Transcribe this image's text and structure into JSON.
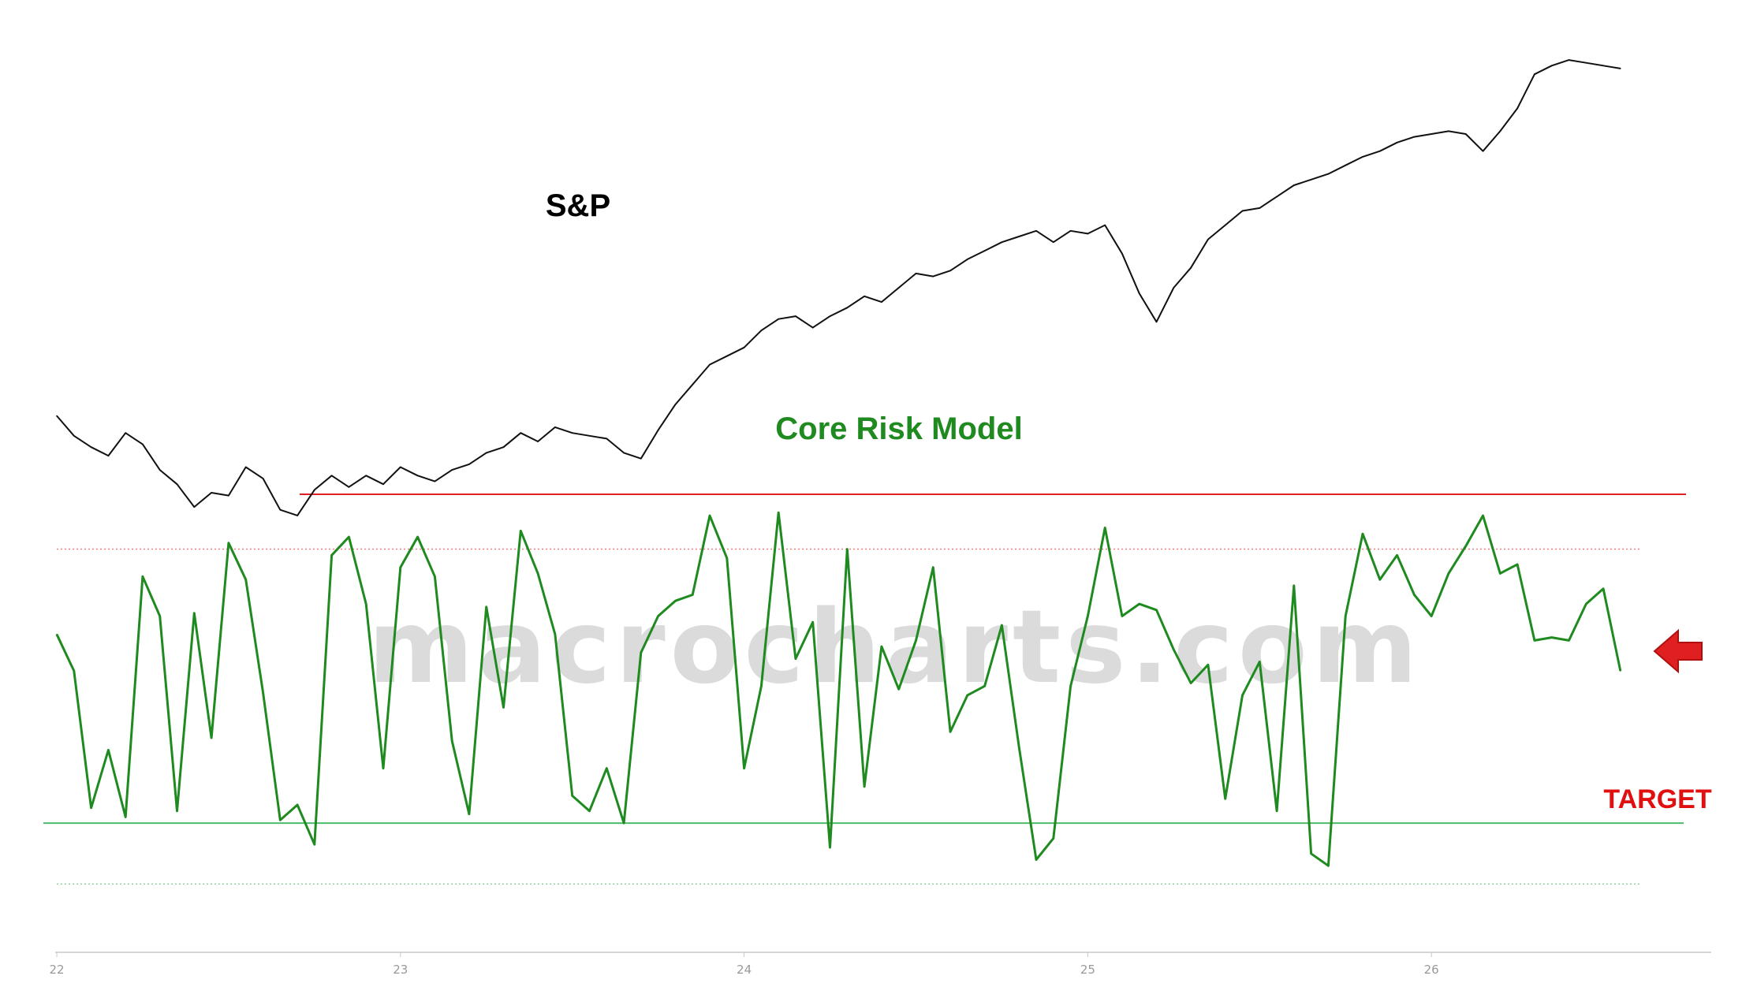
{
  "chart_data": {
    "type": "line",
    "title": "",
    "watermark": "macrocharts.com",
    "xlabel": "",
    "ylabel": "",
    "x_ticks": [
      "22",
      "23",
      "24",
      "25",
      "26"
    ],
    "xlim": [
      2022.0,
      2026.75
    ],
    "grid": false,
    "series": [
      {
        "name": "S&P",
        "color": "#111111",
        "panel": "top",
        "x": [
          2022.0,
          2022.05,
          2022.1,
          2022.15,
          2022.2,
          2022.25,
          2022.3,
          2022.35,
          2022.4,
          2022.45,
          2022.5,
          2022.55,
          2022.6,
          2022.65,
          2022.7,
          2022.75,
          2022.8,
          2022.85,
          2022.9,
          2022.95,
          2023.0,
          2023.05,
          2023.1,
          2023.15,
          2023.2,
          2023.25,
          2023.3,
          2023.35,
          2023.4,
          2023.45,
          2023.5,
          2023.55,
          2023.6,
          2023.65,
          2023.7,
          2023.75,
          2023.8,
          2023.85,
          2023.9,
          2023.95,
          2024.0,
          2024.05,
          2024.1,
          2024.15,
          2024.2,
          2024.25,
          2024.3,
          2024.35,
          2024.4,
          2024.45,
          2024.5,
          2024.55,
          2024.6,
          2024.65,
          2024.7,
          2024.75,
          2024.8,
          2024.85,
          2024.9,
          2024.95,
          2025.0,
          2025.05,
          2025.1,
          2025.15,
          2025.2,
          2025.25,
          2025.3,
          2025.35,
          2025.4,
          2025.45,
          2025.5,
          2025.55,
          2025.6,
          2025.65,
          2025.7,
          2025.75,
          2025.8,
          2025.85,
          2025.9,
          2025.95,
          2026.0,
          2026.05,
          2026.1,
          2026.15,
          2026.2,
          2026.25,
          2026.3,
          2026.35,
          2026.4,
          2026.45,
          2026.5,
          2026.55
        ],
        "y": [
          85,
          78,
          74,
          71,
          79,
          75,
          66,
          61,
          53,
          58,
          57,
          67,
          63,
          52,
          50,
          59,
          64,
          60,
          64,
          61,
          67,
          64,
          62,
          66,
          68,
          72,
          74,
          79,
          76,
          81,
          79,
          78,
          77,
          72,
          70,
          80,
          89,
          96,
          103,
          106,
          109,
          115,
          119,
          120,
          116,
          120,
          123,
          127,
          125,
          130,
          135,
          134,
          136,
          140,
          143,
          146,
          148,
          150,
          146,
          150,
          149,
          152,
          142,
          128,
          118,
          130,
          137,
          147,
          152,
          157,
          158,
          162,
          166,
          168,
          170,
          173,
          176,
          178,
          181,
          183,
          184,
          185,
          184,
          178,
          185,
          193,
          205,
          208,
          210,
          209,
          208,
          207
        ]
      },
      {
        "name": "Core Risk Model",
        "color": "#1f8a1f",
        "panel": "bottom",
        "x": [
          2022.0,
          2022.05,
          2022.1,
          2022.15,
          2022.2,
          2022.25,
          2022.3,
          2022.35,
          2022.4,
          2022.45,
          2022.5,
          2022.55,
          2022.6,
          2022.65,
          2022.7,
          2022.75,
          2022.8,
          2022.85,
          2022.9,
          2022.95,
          2023.0,
          2023.05,
          2023.1,
          2023.15,
          2023.2,
          2023.25,
          2023.3,
          2023.35,
          2023.4,
          2023.45,
          2023.5,
          2023.55,
          2023.6,
          2023.65,
          2023.7,
          2023.75,
          2023.8,
          2023.85,
          2023.9,
          2023.95,
          2024.0,
          2024.05,
          2024.1,
          2024.15,
          2024.2,
          2024.25,
          2024.3,
          2024.35,
          2024.4,
          2024.45,
          2024.5,
          2024.55,
          2024.6,
          2024.65,
          2024.7,
          2024.75,
          2024.8,
          2024.85,
          2024.9,
          2024.95,
          2025.0,
          2025.05,
          2025.1,
          2025.15,
          2025.2,
          2025.25,
          2025.3,
          2025.35,
          2025.4,
          2025.45,
          2025.5,
          2025.55,
          2025.6,
          2025.65,
          2025.7,
          2025.75,
          2025.8,
          2025.85,
          2025.9,
          2025.95,
          2026.0,
          2026.05,
          2026.1,
          2026.15,
          2026.2,
          2026.25,
          2026.3,
          2026.35,
          2026.4,
          2026.45,
          2026.5,
          2026.55
        ],
        "y": [
          62,
          50,
          5,
          24,
          2,
          81,
          68,
          4,
          69,
          28,
          92,
          80,
          43,
          1,
          6,
          -7,
          88,
          94,
          72,
          18,
          84,
          94,
          81,
          27,
          3,
          71,
          38,
          96,
          82,
          62,
          9,
          4,
          18,
          0,
          56,
          68,
          73,
          75,
          101,
          87,
          18,
          45,
          102,
          54,
          66,
          -8,
          90,
          12,
          58,
          44,
          60,
          84,
          30,
          42,
          45,
          65,
          25,
          -12,
          -5,
          45,
          68,
          97,
          68,
          72,
          70,
          57,
          46,
          52,
          8,
          42,
          53,
          4,
          78,
          -10,
          -14,
          68,
          95,
          80,
          88,
          75,
          68,
          82,
          91,
          101,
          82,
          85,
          60,
          61,
          60,
          72,
          77,
          50
        ]
      }
    ],
    "reference_lines": [
      {
        "name": "upper-red-line",
        "panel": "bottom",
        "y": 108,
        "color": "#e02020",
        "style": "solid"
      },
      {
        "name": "upper-dotted-line",
        "panel": "bottom",
        "y": 90,
        "color": "#f08080",
        "style": "dotted"
      },
      {
        "name": "target-line",
        "panel": "bottom",
        "y": 0,
        "color": "#4cbb6c",
        "style": "solid"
      },
      {
        "name": "lower-dotted-line",
        "panel": "bottom",
        "y": -20,
        "color": "#86d19a",
        "style": "dotted"
      }
    ],
    "panels": {
      "top": {
        "ylim": [
          40,
          220
        ]
      },
      "bottom": {
        "ylim": [
          -30,
          115
        ]
      }
    },
    "annotations": {
      "sp_label": "S&P",
      "risk_label": "Core Risk Model",
      "target_label": "TARGET",
      "arrow_color": "#e02020"
    }
  }
}
